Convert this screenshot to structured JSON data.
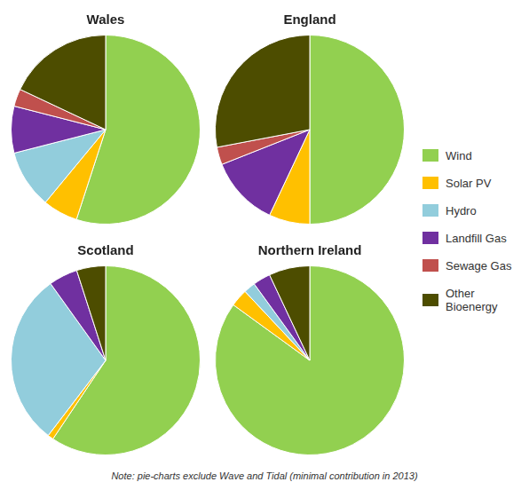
{
  "chart_data": [
    {
      "type": "pie",
      "title": "Wales",
      "categories": [
        "Wind",
        "Solar PV",
        "Hydro",
        "Landfill Gas",
        "Sewage Gas",
        "Other Bioenergy"
      ],
      "values": [
        55,
        6,
        10,
        8,
        3,
        18
      ],
      "colors": [
        "#92D050",
        "#FFC000",
        "#92CDDC",
        "#7030A0",
        "#C0504D",
        "#4D4D00"
      ],
      "legend": "right"
    },
    {
      "type": "pie",
      "title": "England",
      "categories": [
        "Wind",
        "Solar PV",
        "Hydro",
        "Landfill Gas",
        "Sewage Gas",
        "Other Bioenergy"
      ],
      "values": [
        50,
        7,
        0,
        12,
        3,
        28
      ],
      "colors": [
        "#92D050",
        "#FFC000",
        "#92CDDC",
        "#7030A0",
        "#C0504D",
        "#4D4D00"
      ]
    },
    {
      "type": "pie",
      "title": "Scotland",
      "categories": [
        "Wind",
        "Solar PV",
        "Hydro",
        "Landfill Gas",
        "Sewage Gas",
        "Other Bioenergy"
      ],
      "values": [
        60,
        1,
        30,
        5,
        0,
        5
      ],
      "colors": [
        "#92D050",
        "#FFC000",
        "#92CDDC",
        "#7030A0",
        "#C0504D",
        "#4D4D00"
      ]
    },
    {
      "type": "pie",
      "title": "Northern Ireland",
      "categories": [
        "Wind",
        "Solar PV",
        "Hydro",
        "Landfill Gas",
        "Sewage Gas",
        "Other Bioenergy"
      ],
      "values": [
        85,
        3,
        2,
        3,
        0,
        7
      ],
      "colors": [
        "#92D050",
        "#FFC000",
        "#92CDDC",
        "#7030A0",
        "#C0504D",
        "#4D4D00"
      ],
      "annotation": "Note: pie-charts exclude Wave and Tidal (minimal contribution in 2013)"
    }
  ]
}
